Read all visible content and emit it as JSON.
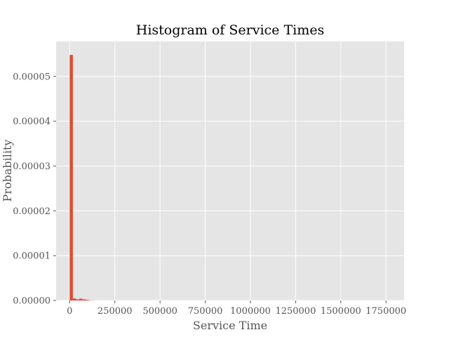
{
  "chart_data": {
    "type": "histogram",
    "title": "Histogram of Service Times",
    "xlabel": "Service Time",
    "ylabel": "Probability",
    "xlim": [
      -75000,
      1850000
    ],
    "ylim": [
      0,
      5.78e-05
    ],
    "x_ticks": [
      {
        "value": 0,
        "label": "0"
      },
      {
        "value": 250000,
        "label": "250000"
      },
      {
        "value": 500000,
        "label": "500000"
      },
      {
        "value": 750000,
        "label": "750000"
      },
      {
        "value": 1000000,
        "label": "1000000"
      },
      {
        "value": 1250000,
        "label": "1250000"
      },
      {
        "value": 1500000,
        "label": "1500000"
      },
      {
        "value": 1750000,
        "label": "1750000"
      }
    ],
    "y_ticks": [
      {
        "value": 0,
        "label": "0.00000"
      },
      {
        "value": 1e-05,
        "label": "0.00001"
      },
      {
        "value": 2e-05,
        "label": "0.00002"
      },
      {
        "value": 3e-05,
        "label": "0.00003"
      },
      {
        "value": 4e-05,
        "label": "0.00004"
      },
      {
        "value": 5e-05,
        "label": "0.00005"
      }
    ],
    "bins": [
      {
        "x0": 0,
        "x1": 17600,
        "value": 5.48e-05
      },
      {
        "x0": 17600,
        "x1": 35200,
        "value": 4.5e-07
      },
      {
        "x0": 35200,
        "x1": 52800,
        "value": 2.5e-07
      },
      {
        "x0": 52800,
        "x1": 70400,
        "value": 4e-07
      },
      {
        "x0": 70400,
        "x1": 88000,
        "value": 2.5e-07
      },
      {
        "x0": 88000,
        "x1": 105600,
        "value": 1.5e-07
      },
      {
        "x0": 105600,
        "x1": 123200,
        "value": 5e-08
      },
      {
        "x0": 123200,
        "x1": 140800,
        "value": 2e-08
      }
    ],
    "grid": true,
    "colors": {
      "bar": "#E24A33",
      "plot_background": "#E5E5E5",
      "grid": "#FFFFFF"
    }
  }
}
